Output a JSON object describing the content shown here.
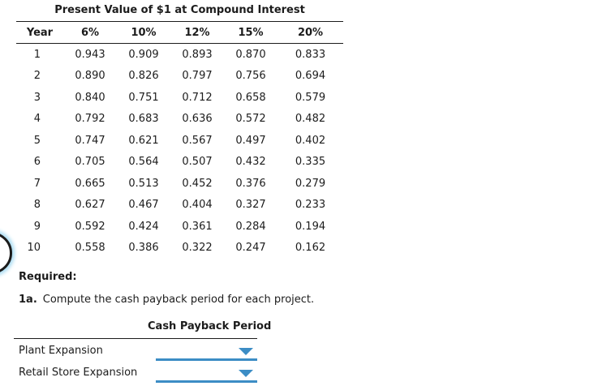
{
  "pv_table": {
    "title": "Present Value of $1 at Compound Interest",
    "columns": [
      "Year",
      "6%",
      "10%",
      "12%",
      "15%",
      "20%"
    ],
    "rows": [
      [
        "1",
        "0.943",
        "0.909",
        "0.893",
        "0.870",
        "0.833"
      ],
      [
        "2",
        "0.890",
        "0.826",
        "0.797",
        "0.756",
        "0.694"
      ],
      [
        "3",
        "0.840",
        "0.751",
        "0.712",
        "0.658",
        "0.579"
      ],
      [
        "4",
        "0.792",
        "0.683",
        "0.636",
        "0.572",
        "0.482"
      ],
      [
        "5",
        "0.747",
        "0.621",
        "0.567",
        "0.497",
        "0.402"
      ],
      [
        "6",
        "0.705",
        "0.564",
        "0.507",
        "0.432",
        "0.335"
      ],
      [
        "7",
        "0.665",
        "0.513",
        "0.452",
        "0.376",
        "0.279"
      ],
      [
        "8",
        "0.627",
        "0.467",
        "0.404",
        "0.327",
        "0.233"
      ],
      [
        "9",
        "0.592",
        "0.424",
        "0.361",
        "0.284",
        "0.194"
      ],
      [
        "10",
        "0.558",
        "0.386",
        "0.322",
        "0.247",
        "0.162"
      ]
    ]
  },
  "required": {
    "heading": "Required:",
    "item_number": "1a.",
    "instruction": "Compute the cash payback period for each project."
  },
  "cash_payback": {
    "title": "Cash Payback Period",
    "rows": [
      {
        "label": "Plant Expansion",
        "value": ""
      },
      {
        "label": "Retail Store Expansion",
        "value": ""
      }
    ]
  },
  "icons": {
    "dropdown_arrow": "chevron-down-triangle"
  },
  "colors": {
    "accent_blue": "#3c8dc5",
    "glow_blue": "#aadcf2",
    "text": "#1c1c1c"
  }
}
